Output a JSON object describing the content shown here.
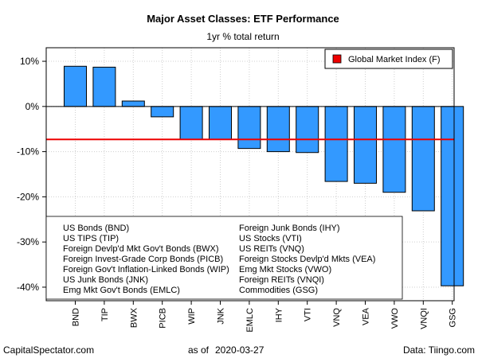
{
  "chart_data": {
    "type": "bar",
    "title": "Major Asset Classes: ETF Performance",
    "subtitle": "1yr % total return",
    "categories": [
      "BND",
      "TIP",
      "BWX",
      "PICB",
      "WIP",
      "JNK",
      "EMLC",
      "IHY",
      "VTI",
      "VNQ",
      "VEA",
      "VWO",
      "VNQI",
      "GSG"
    ],
    "values": [
      8.9,
      8.7,
      1.2,
      -2.3,
      -7.3,
      -7.3,
      -9.3,
      -10.0,
      -10.2,
      -16.6,
      -17.0,
      -19.0,
      -23.1,
      -39.7
    ],
    "ylim": [
      -43,
      13
    ],
    "yticks": [
      10,
      0,
      -10,
      -20,
      -30,
      -40
    ],
    "ytick_labels": [
      "10%",
      "0%",
      "-10%",
      "-20%",
      "-30%",
      "-40%"
    ],
    "reference_line": {
      "name": "Global Market Index (F)",
      "value": -7.3,
      "color": "#ee0000"
    },
    "bar_color": "#3399ff",
    "grid": true,
    "legend": {
      "entry": "Global Market Index (F)",
      "placement": "top-right"
    },
    "notes": [
      "US Bonds (BND)",
      "US TIPS (TIP)",
      "Foreign Devlp'd Mkt Gov't Bonds (BWX)",
      "Foreign Invest-Grade Corp Bonds (PICB)",
      "Foreign Gov't Inflation-Linked Bonds (WIP)",
      "US Junk Bonds (JNK)",
      "Emg Mkt Gov't Bonds (EMLC)",
      "Foreign Junk Bonds (IHY)",
      "US Stocks (VTI)",
      "US REITs (VNQ)",
      "Foreign Stocks Devlp'd Mkts (VEA)",
      "Emg Mkt Stocks (VWO)",
      "Foreign REITs (VNQI)",
      "Commodities (GSG)"
    ]
  },
  "footer": {
    "left": "CapitalSpectator.com",
    "center_prefix": "as of",
    "date": "2020-03-27",
    "right": "Data: Tiingo.com"
  }
}
